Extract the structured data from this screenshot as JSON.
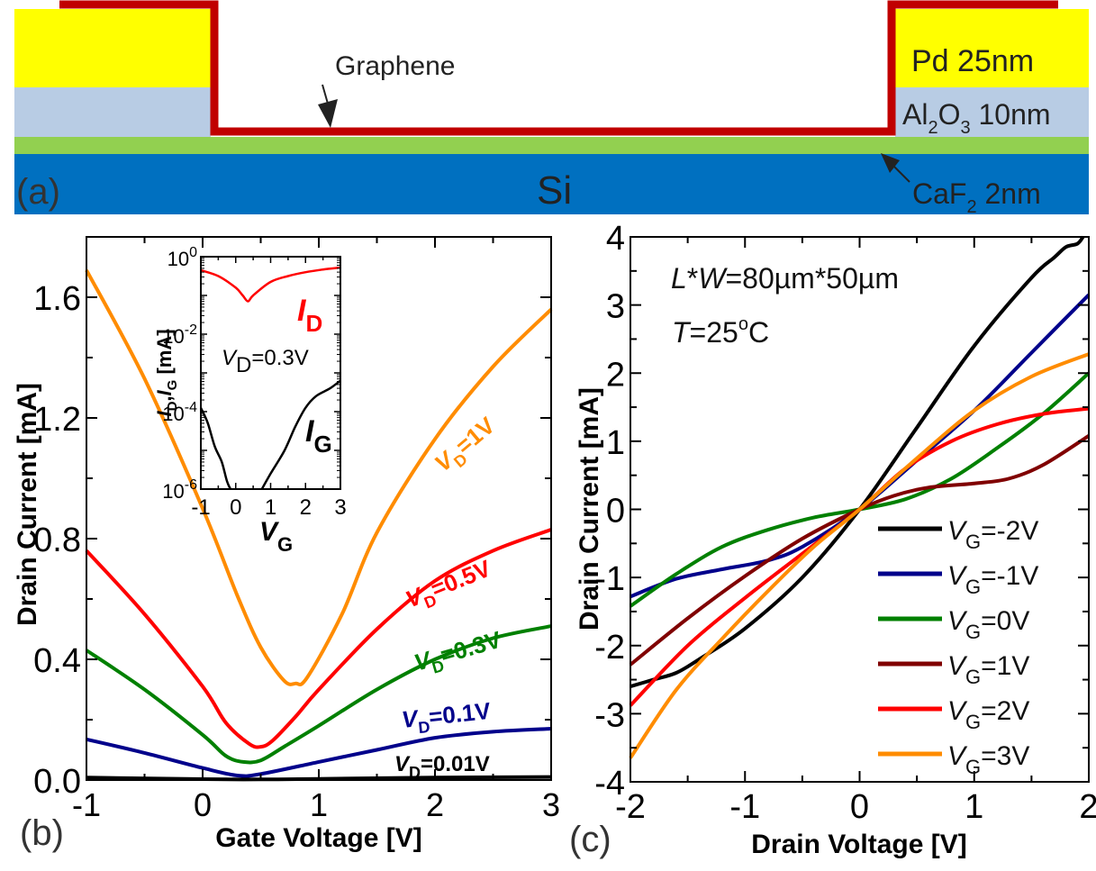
{
  "panel_a": {
    "label": "(a)",
    "graphene_label": "Graphene",
    "pd_label": "Pd 25nm",
    "al2o3_label": {
      "pre": "Al",
      "sub1": "2",
      "mid": "O",
      "sub2": "3",
      "post": " 10nm"
    },
    "si_label": "Si",
    "caf2_label": {
      "pre": "CaF",
      "sub": "2",
      "post": " 2nm"
    },
    "colors": {
      "pd": "#ffff00",
      "al2o3": "#b8cce4",
      "caf2": "#92d050",
      "si": "#0070c0",
      "graphene": "#c00000"
    }
  },
  "chart_data": [
    {
      "id": "b",
      "type": "line",
      "panel_label": "(b)",
      "xlabel": "Gate Voltage [V]",
      "ylabel": "Drain Current [mA]",
      "xlim": [
        -1,
        3
      ],
      "ylim": [
        0,
        1.8
      ],
      "xticks": [
        "-1",
        "0",
        "1",
        "2",
        "3"
      ],
      "yticks": [
        "0.0",
        "0.4",
        "0.8",
        "1.2",
        "1.6"
      ],
      "ytick_values": [
        0,
        0.4,
        0.8,
        1.2,
        1.6
      ],
      "series": [
        {
          "name": "VD=1V",
          "label_main": "V",
          "label_sub": "D",
          "label_rest": "=1V",
          "color": "#ff8c00",
          "x": [
            -1,
            -0.5,
            0,
            0.3,
            0.5,
            0.7,
            0.8,
            0.9,
            1.2,
            1.5,
            2,
            2.5,
            3
          ],
          "y": [
            1.69,
            1.33,
            0.9,
            0.61,
            0.44,
            0.33,
            0.32,
            0.34,
            0.55,
            0.82,
            1.13,
            1.37,
            1.56
          ]
        },
        {
          "name": "VD=0.5V",
          "label_main": "V",
          "label_sub": "D",
          "label_rest": "=0.5V",
          "color": "#ff0000",
          "x": [
            -1,
            -0.5,
            0,
            0.2,
            0.4,
            0.5,
            0.6,
            0.8,
            1,
            1.5,
            2,
            2.5,
            3
          ],
          "y": [
            0.76,
            0.55,
            0.31,
            0.19,
            0.12,
            0.11,
            0.13,
            0.21,
            0.3,
            0.5,
            0.66,
            0.76,
            0.83
          ]
        },
        {
          "name": "VD=0.3V",
          "label_main": "V",
          "label_sub": "D",
          "label_rest": "=0.3V",
          "color": "#008000",
          "x": [
            -1,
            -0.5,
            0,
            0.2,
            0.35,
            0.5,
            0.7,
            1,
            1.5,
            2,
            2.5,
            3
          ],
          "y": [
            0.43,
            0.3,
            0.15,
            0.08,
            0.06,
            0.065,
            0.11,
            0.18,
            0.3,
            0.4,
            0.47,
            0.51
          ]
        },
        {
          "name": "VD=0.1V",
          "label_main": "V",
          "label_sub": "D",
          "label_rest": "=0.1V",
          "color": "#00008b",
          "x": [
            -1,
            -0.5,
            0,
            0.3,
            0.5,
            1,
            1.5,
            2,
            2.5,
            3
          ],
          "y": [
            0.135,
            0.09,
            0.04,
            0.015,
            0.02,
            0.06,
            0.1,
            0.14,
            0.16,
            0.17
          ]
        },
        {
          "name": "VD=0.01V",
          "label_main": "V",
          "label_sub": "D",
          "label_rest": "=0.01V",
          "color": "#000000",
          "x": [
            -1,
            0,
            0.5,
            1,
            2,
            3
          ],
          "y": [
            0.008,
            0.003,
            0.002,
            0.004,
            0.008,
            0.01
          ]
        }
      ],
      "inset": {
        "type": "line",
        "yscale": "log",
        "xlabel_main": "V",
        "xlabel_sub": "G",
        "ylabel": "ID,IG [mA]",
        "ylabel_parts": {
          "i1": "I",
          "s1": "D",
          "comma": ",",
          "i2": "I",
          "s2": "G",
          "rest": " [mA]"
        },
        "annotation": {
          "main": "V",
          "sub": "D",
          "rest": "=0.3V"
        },
        "xlim": [
          -1,
          3
        ],
        "ylim_exp": [
          -6,
          0
        ],
        "xticks": [
          "-1",
          "0",
          "1",
          "2",
          "3"
        ],
        "yticks": [
          {
            "base": "10",
            "exp": "0"
          },
          {
            "base": "10",
            "exp": "-2"
          },
          {
            "base": "10",
            "exp": "-4"
          },
          {
            "base": "10",
            "exp": "-6"
          }
        ],
        "series": [
          {
            "name": "ID",
            "label_main": "I",
            "label_sub": "D",
            "color": "#ff0000",
            "x": [
              -1,
              -0.5,
              0,
              0.2,
              0.35,
              0.5,
              1,
              1.5,
              2,
              2.5,
              3
            ],
            "log10y": [
              -0.35,
              -0.5,
              -0.8,
              -1.0,
              -1.15,
              -1.0,
              -0.65,
              -0.5,
              -0.4,
              -0.33,
              -0.28
            ]
          },
          {
            "name": "IG",
            "label_main": "I",
            "label_sub": "G",
            "color": "#000000",
            "segments": [
              {
                "x": [
                  -1,
                  -0.8,
                  -0.6,
                  -0.4,
                  -0.25,
                  -0.15
                ],
                "log10y": [
                  -3.9,
                  -4.3,
                  -4.9,
                  -5.3,
                  -5.8,
                  -6.0
                ]
              },
              {
                "x": [
                  0.75,
                  1,
                  1.4,
                  1.7,
                  2,
                  2.3,
                  2.7,
                  3
                ],
                "log10y": [
                  -6.0,
                  -5.6,
                  -5.0,
                  -4.4,
                  -3.9,
                  -3.6,
                  -3.4,
                  -3.2
                ]
              }
            ]
          }
        ]
      }
    },
    {
      "id": "c",
      "type": "line",
      "panel_label": "(c)",
      "xlabel": "Drain Voltage [V]",
      "ylabel": "Drain Current [mA]",
      "xlim": [
        -2,
        2
      ],
      "ylim": [
        -4,
        4
      ],
      "xticks": [
        "-2",
        "-1",
        "0",
        "1",
        "2"
      ],
      "yticks": [
        "4",
        "3",
        "2",
        "1",
        "0",
        "-1",
        "-2",
        "-3",
        "-4"
      ],
      "ytick_values": [
        4,
        3,
        2,
        1,
        0,
        -1,
        -2,
        -3,
        -4
      ],
      "annotations": [
        {
          "parts": [
            {
              "t": "L",
              "i": true
            },
            {
              "t": "*",
              "i": false
            },
            {
              "t": "W",
              "i": true
            },
            {
              "t": "=80µm*50µm",
              "i": false
            }
          ]
        },
        {
          "parts": [
            {
              "t": "T",
              "i": true
            },
            {
              "t": "=25",
              "i": false
            }
          ],
          "sup": "o",
          "post": "C"
        }
      ],
      "series": [
        {
          "name": "VG=-2V",
          "label_main": "V",
          "label_sub": "G",
          "label_rest": "=-2V",
          "color": "#000000",
          "x": [
            -2,
            -1.8,
            -1.6,
            -1.4,
            -1,
            -0.5,
            0,
            0.5,
            1,
            1.5,
            1.7,
            1.8,
            1.9,
            1.95
          ],
          "y": [
            -2.6,
            -2.5,
            -2.4,
            -2.2,
            -1.75,
            -1.0,
            0,
            1.2,
            2.4,
            3.4,
            3.7,
            3.85,
            3.9,
            4.0
          ]
        },
        {
          "name": "VG=-1V",
          "label_main": "V",
          "label_sub": "G",
          "label_rest": "=-1V",
          "color": "#00008b",
          "x": [
            -2,
            -1.6,
            -1.2,
            -0.8,
            -0.5,
            0,
            0.5,
            1,
            1.5,
            2
          ],
          "y": [
            -1.28,
            -1.02,
            -0.88,
            -0.75,
            -0.55,
            0,
            0.72,
            1.45,
            2.3,
            3.15
          ]
        },
        {
          "name": "VG=0V",
          "label_main": "V",
          "label_sub": "G",
          "label_rest": "=0V",
          "color": "#008000",
          "x": [
            -2,
            -1.6,
            -1.2,
            -0.8,
            -0.4,
            0,
            0.4,
            0.8,
            1.2,
            1.6,
            2
          ],
          "y": [
            -1.42,
            -0.95,
            -0.55,
            -0.3,
            -0.12,
            0,
            0.15,
            0.45,
            0.9,
            1.4,
            2.0
          ]
        },
        {
          "name": "VG=1V",
          "label_main": "V",
          "label_sub": "G",
          "label_rest": "=1V",
          "color": "#800000",
          "x": [
            -2,
            -1.5,
            -1,
            -0.5,
            0,
            0.3,
            0.6,
            1,
            1.3,
            1.6,
            2
          ],
          "y": [
            -2.28,
            -1.6,
            -0.98,
            -0.43,
            0,
            0.2,
            0.32,
            0.38,
            0.45,
            0.65,
            1.08
          ]
        },
        {
          "name": "VG=2V",
          "label_main": "V",
          "label_sub": "G",
          "label_rest": "=2V",
          "color": "#ff0000",
          "x": [
            -2,
            -1.5,
            -1,
            -0.5,
            0,
            0.4,
            0.8,
            1.2,
            1.6,
            2
          ],
          "y": [
            -2.88,
            -2.0,
            -1.3,
            -0.65,
            0,
            0.6,
            1.0,
            1.25,
            1.4,
            1.48
          ]
        },
        {
          "name": "VG=3V",
          "label_main": "V",
          "label_sub": "G",
          "label_rest": "=3V",
          "color": "#ff8c00",
          "x": [
            -2,
            -1.6,
            -1.2,
            -0.8,
            -0.4,
            0,
            0.5,
            1,
            1.5,
            2
          ],
          "y": [
            -3.65,
            -2.65,
            -1.9,
            -1.2,
            -0.55,
            0,
            0.75,
            1.45,
            1.95,
            2.28
          ]
        }
      ],
      "legend": "bottom-right"
    }
  ]
}
